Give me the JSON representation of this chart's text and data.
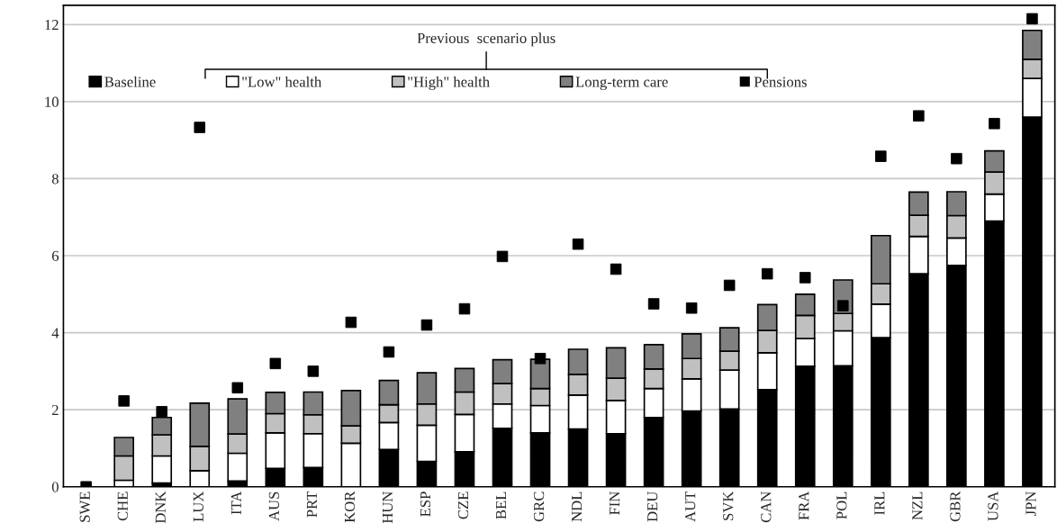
{
  "chart_data": {
    "type": "bar",
    "stacked": true,
    "categories": [
      "SWE",
      "CHE",
      "DNK",
      "LUX",
      "ITA",
      "AUS",
      "PRT",
      "KOR",
      "HUN",
      "ESP",
      "CZE",
      "BEL",
      "GRC",
      "NDL",
      "FIN",
      "DEU",
      "AUT",
      "SVK",
      "CAN",
      "FRA",
      "POL",
      "IRL",
      "NZL",
      "GBR",
      "USA",
      "JPN"
    ],
    "series": [
      {
        "name": "Baseline",
        "color": "#000000",
        "values": [
          0,
          0,
          0.1,
          0,
          0.15,
          0.48,
          0.5,
          0,
          0.97,
          0.66,
          0.91,
          1.52,
          1.4,
          1.5,
          1.38,
          1.8,
          1.97,
          2.02,
          2.52,
          3.13,
          3.14,
          3.87,
          5.53,
          5.75,
          6.9,
          9.6
        ]
      },
      {
        "name": "\"Low\" health",
        "color": "#ffffff",
        "values": [
          0,
          0.17,
          0.7,
          0.42,
          0.72,
          0.92,
          0.88,
          1.13,
          0.7,
          0.94,
          0.97,
          0.63,
          0.71,
          0.88,
          0.86,
          0.75,
          0.83,
          1.01,
          0.96,
          0.72,
          0.91,
          0.87,
          0.97,
          0.71,
          0.7,
          1.0
        ]
      },
      {
        "name": "\"High\" health",
        "color": "#c0c0c0",
        "values": [
          0,
          0.63,
          0.55,
          0.63,
          0.5,
          0.5,
          0.49,
          0.45,
          0.46,
          0.55,
          0.58,
          0.53,
          0.44,
          0.54,
          0.58,
          0.51,
          0.53,
          0.49,
          0.58,
          0.6,
          0.45,
          0.53,
          0.55,
          0.58,
          0.57,
          0.5
        ]
      },
      {
        "name": "Long-term care",
        "color": "#808080",
        "values": [
          0,
          0.48,
          0.45,
          1.12,
          0.91,
          0.55,
          0.59,
          0.92,
          0.63,
          0.81,
          0.61,
          0.62,
          0.76,
          0.65,
          0.79,
          0.63,
          0.64,
          0.61,
          0.67,
          0.55,
          0.87,
          1.25,
          0.6,
          0.62,
          0.55,
          0.75
        ]
      },
      {
        "name": "Pensions",
        "type": "scatter",
        "marker": "square",
        "color": "#000000",
        "values": [
          0,
          2.23,
          1.95,
          9.33,
          2.57,
          3.2,
          3.0,
          4.27,
          3.5,
          4.2,
          4.62,
          5.98,
          3.33,
          6.3,
          5.65,
          4.75,
          4.64,
          5.23,
          5.53,
          5.43,
          4.7,
          8.58,
          9.63,
          8.52,
          9.43,
          12.15
        ]
      }
    ],
    "ylim": [
      0,
      12.5
    ],
    "yticks": [
      0,
      2,
      4,
      6,
      8,
      10,
      12
    ],
    "grid": "y",
    "legend": "top",
    "annotations": [
      "Previous  scenario plus"
    ]
  }
}
